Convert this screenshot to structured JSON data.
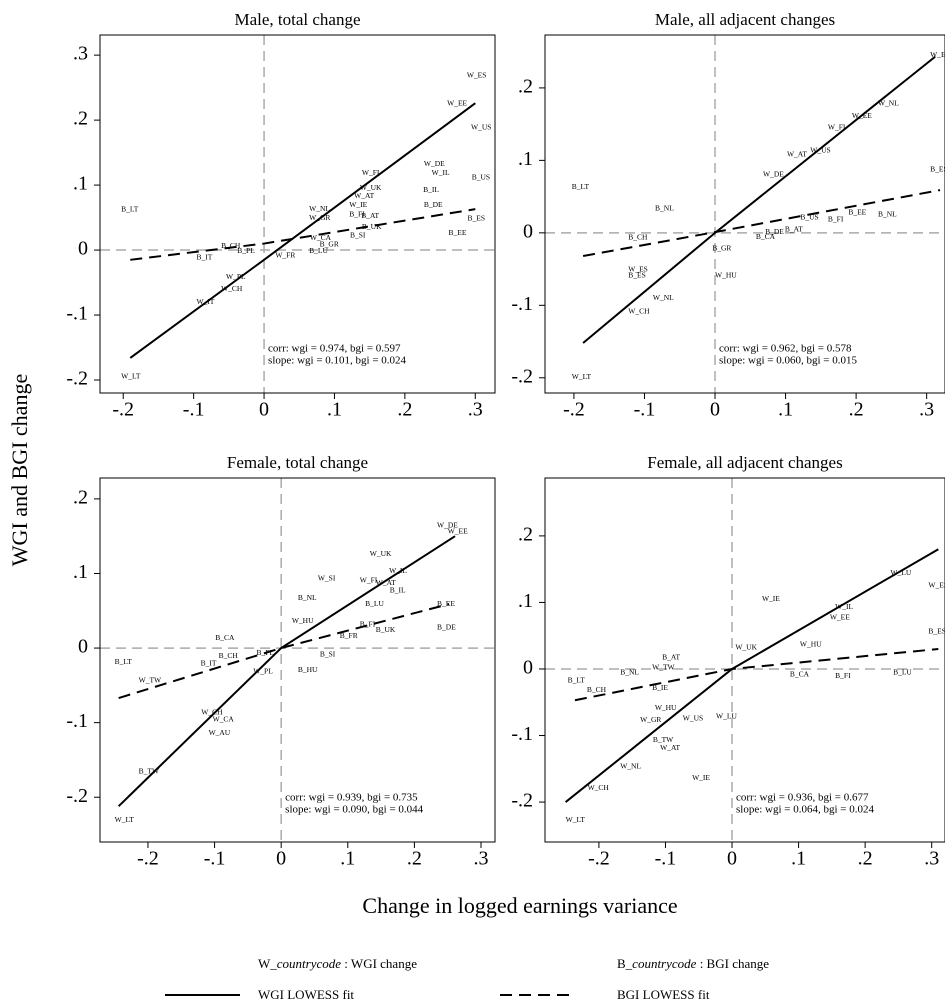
{
  "chart_data": [
    {
      "type": "scatter",
      "title": "Male, total change",
      "xlim": [
        -0.233,
        0.328
      ],
      "ylim": [
        -0.22,
        0.331
      ],
      "xticks": [
        {
          "value": -0.2,
          "label": "-.2"
        },
        {
          "value": -0.1,
          "label": "-.1"
        },
        0,
        {
          "value": 0.1,
          "label": ".1"
        },
        {
          "value": 0.2,
          "label": ".2"
        },
        {
          "value": 0.3,
          "label": ".3"
        }
      ],
      "yticks": [
        {
          "value": 0.3,
          "label": ".3"
        },
        {
          "value": 0.2,
          "label": ".2"
        },
        {
          "value": 0.1,
          "label": ".1"
        },
        0,
        {
          "value": -0.1,
          "label": "-.1"
        },
        {
          "value": -0.2,
          "label": "-.2"
        }
      ],
      "points": {
        "labels": [
          "W_ES",
          "W_EE",
          "W_US",
          "W_DE",
          "W_IL",
          "B_US",
          "W_FI",
          "W_UK",
          "B_IL",
          "W_AT",
          "W_IE",
          "B_DE",
          "B_AT",
          "B_FI",
          "B_ES",
          "B_UK",
          "B_EE",
          "B_SI",
          "W_NL",
          "W_GR",
          "W_CA",
          "B_GR",
          "B_LU",
          "W_FR",
          "B_PL",
          "B_CH",
          "B_IT",
          "W_PL",
          "W_CH",
          "W_IT",
          "B_LT",
          "W_LT"
        ],
        "x": [
          0.288,
          0.26,
          0.294,
          0.227,
          0.238,
          0.295,
          0.139,
          0.136,
          0.226,
          0.128,
          0.121,
          0.227,
          0.138,
          0.121,
          0.289,
          0.139,
          0.262,
          0.122,
          0.064,
          0.064,
          0.065,
          0.079,
          0.064,
          0.016,
          -0.038,
          -0.061,
          -0.096,
          -0.054,
          -0.061,
          -0.096,
          -0.203,
          -0.203
        ],
        "y": [
          0.268,
          0.225,
          0.188,
          0.132,
          0.118,
          0.111,
          0.118,
          0.095,
          0.092,
          0.083,
          0.069,
          0.069,
          0.052,
          0.054,
          0.048,
          0.035,
          0.026,
          0.022,
          0.063,
          0.049,
          0.018,
          0.008,
          -0.002,
          -0.009,
          -0.002,
          0.006,
          -0.012,
          -0.042,
          -0.06,
          -0.08,
          0.062,
          -0.195
        ]
      },
      "fits": [
        {
          "style": "solid",
          "x": [
            -0.19,
            0,
            0.3
          ],
          "y": [
            -0.166,
            -0.015,
            0.226
          ]
        },
        {
          "style": "dashed",
          "x": [
            -0.19,
            0,
            0.3
          ],
          "y": [
            -0.015,
            0.01,
            0.063
          ]
        }
      ],
      "annotations": [
        "corr: wgi = 0.974, bgi = 0.597",
        "slope: wgi = 0.101, bgi = 0.024"
      ]
    },
    {
      "type": "scatter",
      "title": "Male, all adjacent changes",
      "xlim": [
        -0.241,
        0.326
      ],
      "ylim": [
        -0.221,
        0.273
      ],
      "xticks": [
        {
          "value": -0.2,
          "label": "-.2"
        },
        {
          "value": -0.1,
          "label": "-.1"
        },
        0,
        {
          "value": 0.1,
          "label": ".1"
        },
        {
          "value": 0.2,
          "label": ".2"
        },
        {
          "value": 0.3,
          "label": ".3"
        }
      ],
      "yticks": [
        {
          "value": 0.2,
          "label": ".2"
        },
        {
          "value": 0.1,
          "label": ".1"
        },
        0,
        {
          "value": -0.1,
          "label": "-.1"
        },
        {
          "value": -0.2,
          "label": "-.2"
        }
      ],
      "points": {
        "labels": [
          "W_ES",
          "W_NL",
          "W_EE",
          "W_FI",
          "W_AT",
          "W_DE",
          "W_US",
          "B_ES",
          "B_EE",
          "B_NL",
          "B_FI",
          "B_US",
          "B_AT",
          "B_DE",
          "B_CA",
          "B_GR",
          "B_NL",
          "B_LT",
          "W_HU",
          "W_ES",
          "B_ES",
          "W_NL",
          "W_CH",
          "W_LT",
          "B_CH"
        ],
        "x": [
          0.305,
          0.231,
          0.194,
          0.16,
          0.102,
          0.068,
          0.135,
          0.305,
          0.189,
          0.231,
          0.16,
          0.121,
          0.099,
          0.071,
          0.058,
          -0.004,
          -0.085,
          -0.203,
          0,
          -0.123,
          -0.123,
          -0.088,
          -0.123,
          -0.203,
          -0.123
        ],
        "y": [
          0.245,
          0.178,
          0.161,
          0.145,
          0.108,
          0.08,
          0.113,
          0.087,
          0.028,
          0.025,
          0.018,
          0.021,
          0.004,
          0.001,
          -0.006,
          -0.022,
          0.033,
          0.063,
          -0.059,
          -0.051,
          -0.059,
          -0.09,
          -0.109,
          -0.199,
          -0.007
        ]
      },
      "fits": [
        {
          "style": "solid",
          "x": [
            -0.187,
            0,
            0.312
          ],
          "y": [
            -0.152,
            0,
            0.243
          ]
        },
        {
          "style": "dashed",
          "x": [
            -0.187,
            0,
            0.319
          ],
          "y": [
            -0.032,
            0.001,
            0.059
          ]
        }
      ],
      "annotations": [
        "corr: wgi = 0.962, bgi = 0.578",
        "slope: wgi = 0.060, bgi = 0.015"
      ]
    },
    {
      "type": "scatter",
      "title": "Female, total change",
      "xlim": [
        -0.272,
        0.321
      ],
      "ylim": [
        -0.26,
        0.228
      ],
      "xticks": [
        {
          "value": -0.2,
          "label": "-.2"
        },
        {
          "value": -0.1,
          "label": "-.1"
        },
        0,
        {
          "value": 0.1,
          "label": ".1"
        },
        {
          "value": 0.2,
          "label": ".2"
        },
        {
          "value": 0.3,
          "label": ".3"
        }
      ],
      "yticks": [
        {
          "value": 0.2,
          "label": ".2"
        },
        {
          "value": 0.1,
          "label": ".1"
        },
        0,
        {
          "value": -0.1,
          "label": "-.1"
        },
        {
          "value": -0.2,
          "label": "-.2"
        }
      ],
      "points": {
        "labels": [
          "W_DE",
          "W_EE",
          "W_UK",
          "W_IL",
          "W_SI",
          "W_AT",
          "W_FI",
          "B_IL",
          "B_NL",
          "B_EE",
          "B_LU",
          "B_DE",
          "B_UK",
          "B_FI",
          "B_FR",
          "B_SI",
          "B_HU",
          "W_HU",
          "B_CA",
          "B_CH",
          "B_IT",
          "B_PL",
          "W_PL",
          "B_LT",
          "B_TW",
          "W_TW",
          "W_CH",
          "W_CA",
          "W_AU",
          "W_LT"
        ],
        "x": [
          0.234,
          0.25,
          0.133,
          0.162,
          0.055,
          0.142,
          0.118,
          0.163,
          0.025,
          0.234,
          0.126,
          0.234,
          0.142,
          0.118,
          0.088,
          0.058,
          0.025,
          0.016,
          -0.099,
          -0.094,
          -0.121,
          -0.037,
          -0.042,
          -0.25,
          -0.214,
          -0.214,
          -0.12,
          -0.103,
          -0.109,
          -0.25
        ],
        "y": [
          0.164,
          0.156,
          0.126,
          0.103,
          0.093,
          0.087,
          0.09,
          0.077,
          0.067,
          0.059,
          0.059,
          0.027,
          0.024,
          0.031,
          0.016,
          -0.009,
          -0.03,
          0.036,
          0.013,
          -0.011,
          -0.021,
          -0.007,
          -0.032,
          -0.019,
          -0.166,
          -0.044,
          -0.087,
          -0.096,
          -0.114,
          -0.231
        ]
      },
      "fits": [
        {
          "style": "solid",
          "x": [
            -0.244,
            0,
            0.261
          ],
          "y": [
            -0.212,
            0,
            0.15
          ]
        },
        {
          "style": "dashed",
          "x": [
            -0.244,
            0,
            0.252
          ],
          "y": [
            -0.067,
            0,
            0.059
          ]
        }
      ],
      "annotations": [
        "corr: wgi = 0.939, bgi = 0.735",
        "slope: wgi = 0.090, bgi = 0.044"
      ]
    },
    {
      "type": "scatter",
      "title": "Female, all adjacent changes",
      "xlim": [
        -0.281,
        0.32
      ],
      "ylim": [
        -0.26,
        0.287
      ],
      "xticks": [
        {
          "value": -0.2,
          "label": "-.2"
        },
        {
          "value": -0.1,
          "label": "-.1"
        },
        0,
        {
          "value": 0.1,
          "label": ".1"
        },
        {
          "value": 0.2,
          "label": ".2"
        },
        {
          "value": 0.3,
          "label": ".3"
        }
      ],
      "yticks": [
        {
          "value": 0.2,
          "label": ".2"
        },
        {
          "value": 0.1,
          "label": ".1"
        },
        0,
        {
          "value": -0.1,
          "label": "-.1"
        },
        {
          "value": -0.2,
          "label": "-.2"
        }
      ],
      "points": {
        "labels": [
          "W_LU",
          "W_ES",
          "W_IE",
          "W_IL",
          "W_EE",
          "W_HU",
          "W_UK",
          "B_ES",
          "B_LU",
          "B_FI",
          "B_CA",
          "B_AT",
          "B_NL",
          "B_LT",
          "B_CH",
          "W_TW",
          "B_IE",
          "W_HU",
          "W_GR",
          "W_US",
          "W_LU",
          "W_AT",
          "W_NL",
          "W_IE",
          "W_CH",
          "W_LT",
          "B_TW"
        ],
        "x": [
          0.238,
          0.295,
          0.045,
          0.155,
          0.147,
          0.102,
          0.005,
          0.295,
          0.242,
          0.155,
          0.087,
          -0.105,
          -0.168,
          -0.247,
          -0.218,
          -0.12,
          -0.12,
          -0.116,
          -0.138,
          -0.074,
          -0.024,
          -0.108,
          -0.168,
          -0.06,
          -0.217,
          -0.25,
          -0.119
        ],
        "y": [
          0.144,
          0.125,
          0.105,
          0.093,
          0.077,
          0.036,
          0.032,
          0.056,
          -0.006,
          -0.011,
          -0.009,
          0.017,
          -0.006,
          -0.018,
          -0.032,
          0.002,
          -0.029,
          -0.059,
          -0.077,
          -0.075,
          -0.072,
          -0.119,
          -0.147,
          -0.164,
          -0.179,
          -0.227,
          -0.107
        ]
      },
      "fits": [
        {
          "style": "solid",
          "x": [
            -0.25,
            0,
            0.31
          ],
          "y": [
            -0.2,
            0,
            0.18
          ]
        },
        {
          "style": "dashed",
          "x": [
            -0.236,
            0,
            0.31
          ],
          "y": [
            -0.047,
            0,
            0.03
          ]
        }
      ],
      "annotations": [
        "corr: wgi = 0.936, bgi = 0.677",
        "slope: wgi = 0.064, bgi = 0.024"
      ]
    }
  ],
  "y_label": "WGI and BGI change",
  "x_label": "Change in logged earnings variance",
  "legend": {
    "markers": [
      {
        "prefix": "W_",
        "code": "countrycode",
        "suffix": " : WGI change"
      },
      {
        "prefix": "B_",
        "code": "countrycode",
        "suffix": " : BGI change"
      }
    ],
    "lines": [
      {
        "label": "WGI LOWESS fit",
        "style": "solid"
      },
      {
        "label": "BGI LOWESS fit",
        "style": "dashed"
      }
    ]
  }
}
